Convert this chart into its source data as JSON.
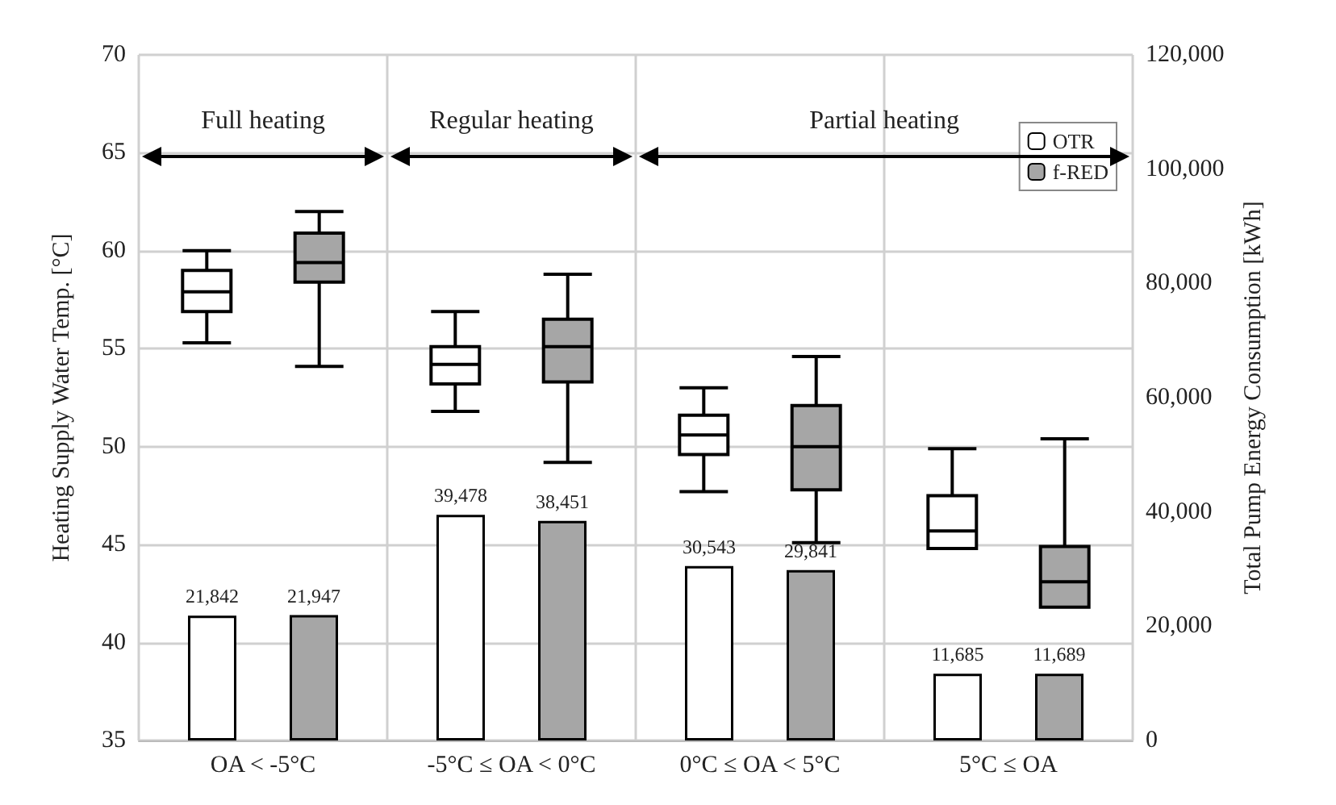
{
  "chart_data": {
    "type": "bar",
    "ylabel": "Heating Supply Water Temp. [°C]",
    "y2label": "Total Pump Energy Consumption [kWh]",
    "categories": [
      "OA < -5°C",
      "-5°C ≤ OA < 0°C",
      "0°C ≤ OA < 5°C",
      "5°C ≤ OA"
    ],
    "series": [
      {
        "name": "OTR",
        "type": "bar",
        "axis": "y2",
        "color": "#ffffff",
        "values": [
          21842,
          39478,
          30543,
          11685
        ],
        "value_labels": [
          "21,842",
          "39,478",
          "30,543",
          "11,685"
        ]
      },
      {
        "name": "f-RED",
        "type": "bar",
        "axis": "y2",
        "color": "#a6a6a6",
        "values": [
          21947,
          38451,
          29841,
          11689
        ],
        "value_labels": [
          "21,947",
          "38,451",
          "29,841",
          "11,689"
        ]
      },
      {
        "type": "box",
        "color": "#ffffff",
        "boxes": [
          {
            "low": 55.3,
            "q1": 56.9,
            "median": 57.9,
            "q3": 59.0,
            "high": 60.0
          },
          {
            "low": 51.8,
            "q1": 53.2,
            "median": 54.2,
            "q3": 55.1,
            "high": 56.9
          },
          {
            "low": 47.7,
            "q1": 49.6,
            "median": 50.6,
            "q3": 51.6,
            "high": 53.0
          },
          {
            "low": 44.8,
            "q1": 44.8,
            "median": 45.7,
            "q3": 47.5,
            "high": 49.9
          }
        ]
      },
      {
        "type": "box",
        "color": "#a6a6a6",
        "boxes": [
          {
            "low": 54.1,
            "q1": 58.4,
            "median": 59.4,
            "q3": 60.9,
            "high": 62.0
          },
          {
            "low": 49.2,
            "q1": 53.3,
            "median": 55.1,
            "q3": 56.5,
            "high": 58.8
          },
          {
            "low": 45.1,
            "q1": 47.8,
            "median": 50.0,
            "q3": 52.1,
            "high": 54.6
          },
          {
            "low": 41.8,
            "q1": 41.8,
            "median": 43.1,
            "q3": 44.9,
            "high": 50.4
          }
        ]
      }
    ],
    "ylim": [
      35,
      70
    ],
    "yticks": [
      35,
      40,
      45,
      50,
      55,
      60,
      65,
      70
    ],
    "y2lim": [
      0,
      120000
    ],
    "y2ticks": [
      0,
      {
        "value": 20000,
        "label": "20,000"
      },
      {
        "value": 40000,
        "label": "40,000"
      },
      {
        "value": 60000,
        "label": "60,000"
      },
      {
        "value": 80000,
        "label": "80,000"
      },
      {
        "value": 100000,
        "label": "100,000"
      },
      {
        "value": 120000,
        "label": "120,000"
      }
    ],
    "annotations": [
      "Full heating",
      "Regular heating",
      "Partial heating"
    ],
    "grid": true,
    "legend": "top right"
  }
}
